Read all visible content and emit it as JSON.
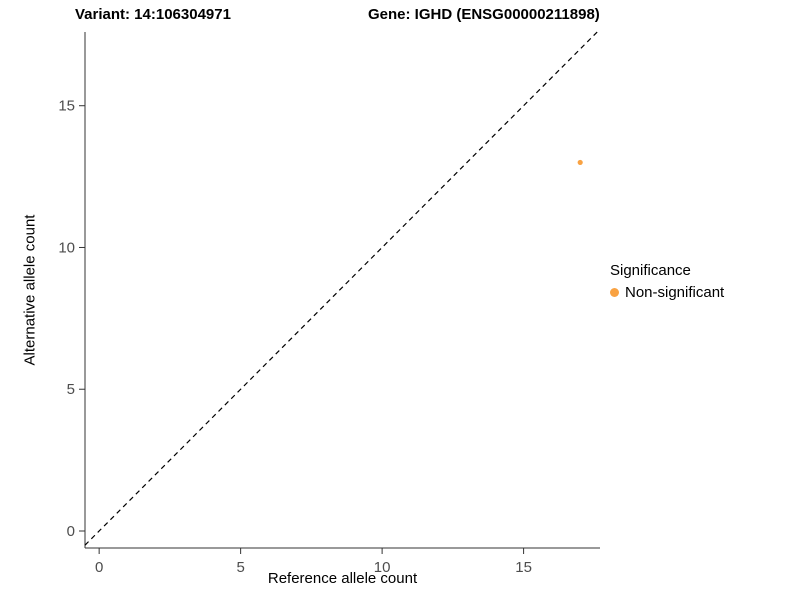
{
  "chart_data": {
    "type": "scatter",
    "title_left": "Variant: 14:106304971",
    "title_right": "Gene: IGHD (ENSG00000211898)",
    "xlabel": "Reference allele count",
    "ylabel": "Alternative allele count",
    "xlim": [
      -0.5,
      17.7
    ],
    "ylim": [
      -0.6,
      17.6
    ],
    "xticks": [
      0,
      5,
      10,
      15
    ],
    "yticks": [
      0,
      5,
      10,
      15
    ],
    "grid": "off",
    "background": "#FFFFFF",
    "points": [
      {
        "x": 17,
        "y": 13,
        "series": "Non-significant"
      }
    ],
    "identity_line": {
      "from": -0.5,
      "to": 17.6,
      "style": "dashed",
      "color": "#000000"
    },
    "legend": {
      "title": "Significance",
      "position": "right",
      "entries": [
        {
          "label": "Non-significant",
          "color": "#F9A242"
        }
      ]
    }
  }
}
